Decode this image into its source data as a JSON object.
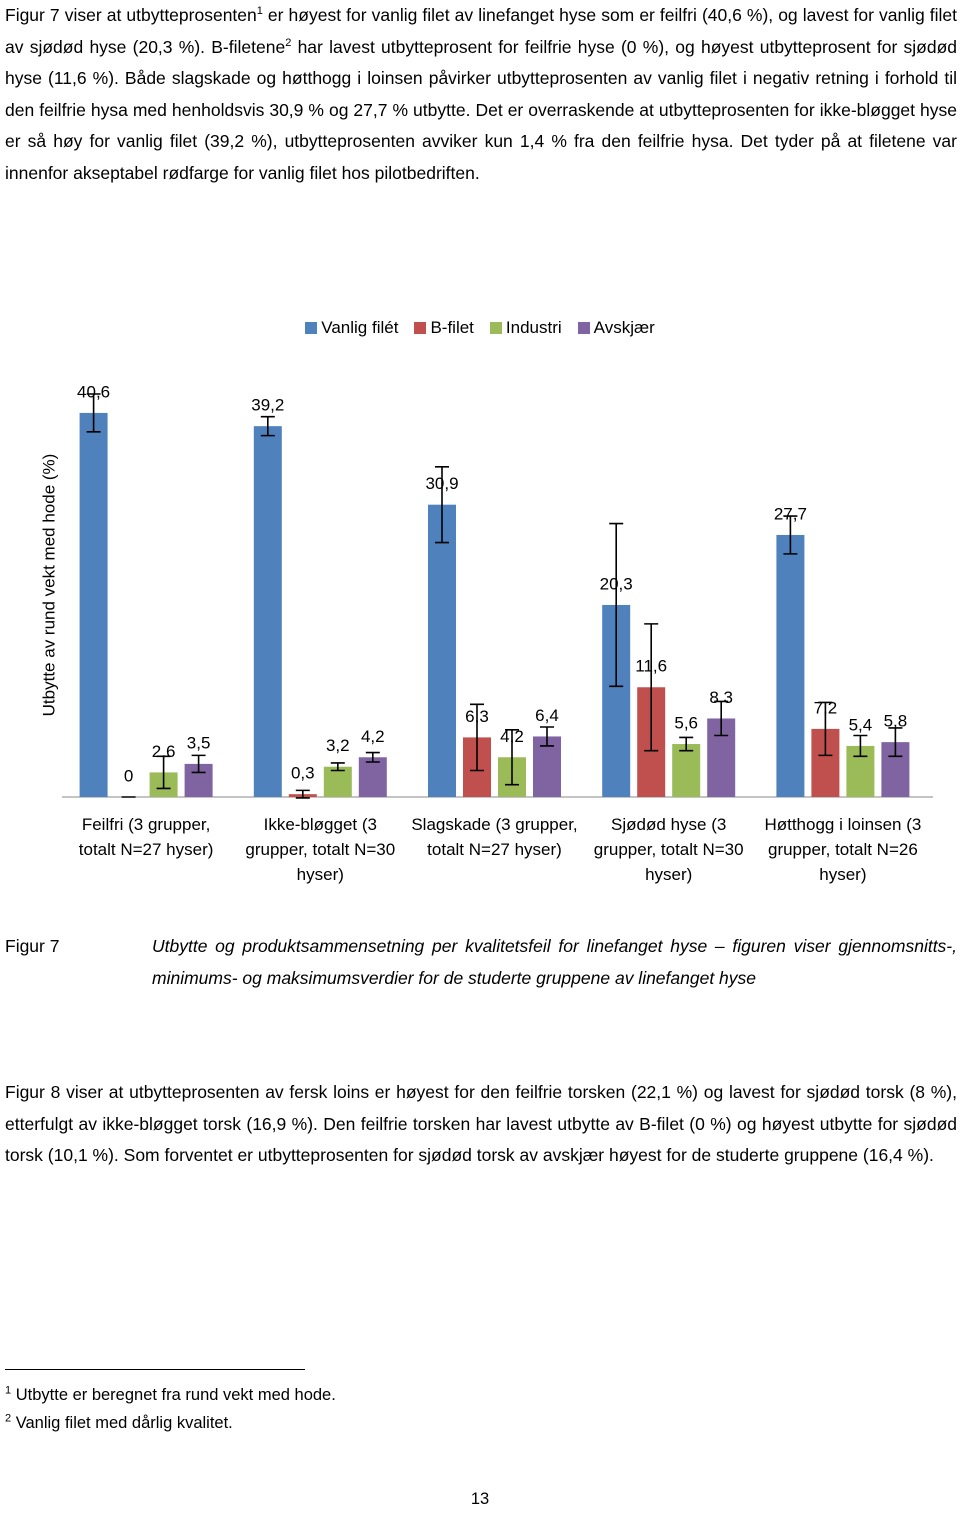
{
  "paragraphs": [
    {
      "runs": [
        "Figur 7 viser at utbytteprosenten",
        "1",
        " er høyest for vanlig filet av linefanget hyse som er feilfri (40,6 %), og lavest for vanlig filet av sjødød hyse (20,3 %). B-filetene",
        "2",
        " har lavest utbytteprosent for feilfrie hyse (0 %), og høyest utbytteprosent for sjødød hyse (11,6 %). Både slagskade og høtthogg i loinsen påvirker utbytteprosenten av vanlig filet i negativ retning i forhold til den feilfrie hysa med henholdsvis 30,9 % og 27,7 % utbytte. Det er overraskende at utbytteprosenten for ikke-bløgget hyse er så høy for vanlig filet (39,2 %), utbytteprosenten avviker kun 1,4 % fra den feilfrie hysa. Det tyder på at filetene var innenfor akseptabel rødfarge for vanlig filet hos pilotbedriften."
      ]
    }
  ],
  "chart_data": {
    "type": "bar",
    "ylabel": "Utbytte av rund vekt med hode (%)",
    "categories": [
      "Feilfri (3 grupper, totalt N=27 hyser)",
      "Ikke-bløgget (3 grupper, totalt N=30 hyser)",
      "Slagskade (3 grupper, totalt N=27 hyser)",
      "Sjødød hyse (3 grupper, totalt N=30 hyser)",
      "Høtthogg i loinsen (3 grupper, totalt N=26 hyser)"
    ],
    "series": [
      {
        "name": "Vanlig filét",
        "color": "#4f81bd",
        "values": [
          40.6,
          39.2,
          30.9,
          20.3,
          27.7
        ],
        "value_labels": [
          "40,6",
          "39,2",
          "30,9",
          "20,3",
          "27,7"
        ],
        "errors": [
          2.0,
          1.0,
          4.0,
          8.6,
          2.0
        ]
      },
      {
        "name": "B-filet",
        "color": "#c0504d",
        "values": [
          0,
          0.3,
          6.3,
          11.6,
          7.2
        ],
        "value_labels": [
          "0",
          "0,3",
          "6,3",
          "11,6",
          "7,2"
        ],
        "errors": [
          0,
          0.4,
          3.5,
          6.7,
          2.8
        ]
      },
      {
        "name": "Industri",
        "color": "#9bbb59",
        "values": [
          2.6,
          3.2,
          4.2,
          5.6,
          5.4
        ],
        "value_labels": [
          "2,6",
          "3,2",
          "4,2",
          "5,6",
          "5,4"
        ],
        "errors": [
          1.7,
          0.4,
          2.9,
          0.7,
          1.1
        ]
      },
      {
        "name": "Avskjær",
        "color": "#8064a2",
        "values": [
          3.5,
          4.2,
          6.4,
          8.3,
          5.8
        ],
        "value_labels": [
          "3,5",
          "4,2",
          "6,4",
          "8,3",
          "5,8"
        ],
        "errors": [
          0.9,
          0.5,
          1.0,
          1.8,
          1.5
        ]
      }
    ]
  },
  "caption": {
    "label": "Figur 7",
    "text": "Utbytte og produktsammensetning per kvalitetsfeil for linefanget hyse – figuren viser gjennomsnitts-, minimums- og maksimumsverdier for de studerte gruppene av linefanget hyse"
  },
  "paragraph2": "Figur 8 viser at utbytteprosenten av fersk loins er høyest for den feilfrie torsken (22,1 %) og lavest for sjødød torsk (8 %), etterfulgt av ikke-bløgget torsk (16,9 %). Den feilfrie torsken har lavest utbytte av B-filet (0 %) og høyest utbytte for sjødød torsk (10,1 %). Som forventet er utbytteprosenten for sjødød torsk av avskjær høyest for de studerte gruppene (16,4 %).",
  "footnotes": [
    {
      "number": "1",
      "text": "Utbytte er beregnet fra rund vekt med hode."
    },
    {
      "number": "2",
      "text": "Vanlig filet med dårlig kvalitet."
    }
  ],
  "page_number": "13"
}
